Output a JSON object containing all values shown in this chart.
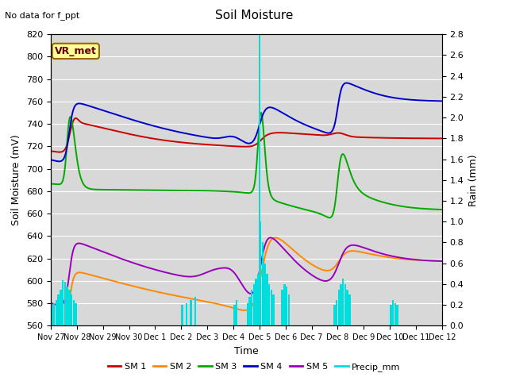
{
  "title": "Soil Moisture",
  "subtitle": "No data for f_ppt",
  "xlabel": "Time",
  "ylabel_left": "Soil Moisture (mV)",
  "ylabel_right": "Rain (mm)",
  "ylim_left": [
    560,
    820
  ],
  "ylim_right": [
    0.0,
    2.8
  ],
  "bg_color": "#d8d8d8",
  "station_label": "VR_met",
  "x_tick_labels": [
    "Nov 27",
    "Nov 28",
    "Nov 29",
    "Nov 30",
    "Dec 1",
    "Dec 2",
    "Dec 3",
    "Dec 4",
    "Dec 5",
    "Dec 6",
    "Dec 7",
    "Dec 8",
    "Dec 9",
    "Dec 10",
    "Dec 11",
    "Dec 12"
  ],
  "colors": {
    "SM1": "#cc0000",
    "SM2": "#ff8800",
    "SM3": "#00aa00",
    "SM4": "#0000cc",
    "SM5": "#9900bb",
    "Precip": "#00dddd"
  },
  "legend_labels": [
    "SM 1",
    "SM 2",
    "SM 3",
    "SM 4",
    "SM 5",
    "Precip_mm"
  ]
}
